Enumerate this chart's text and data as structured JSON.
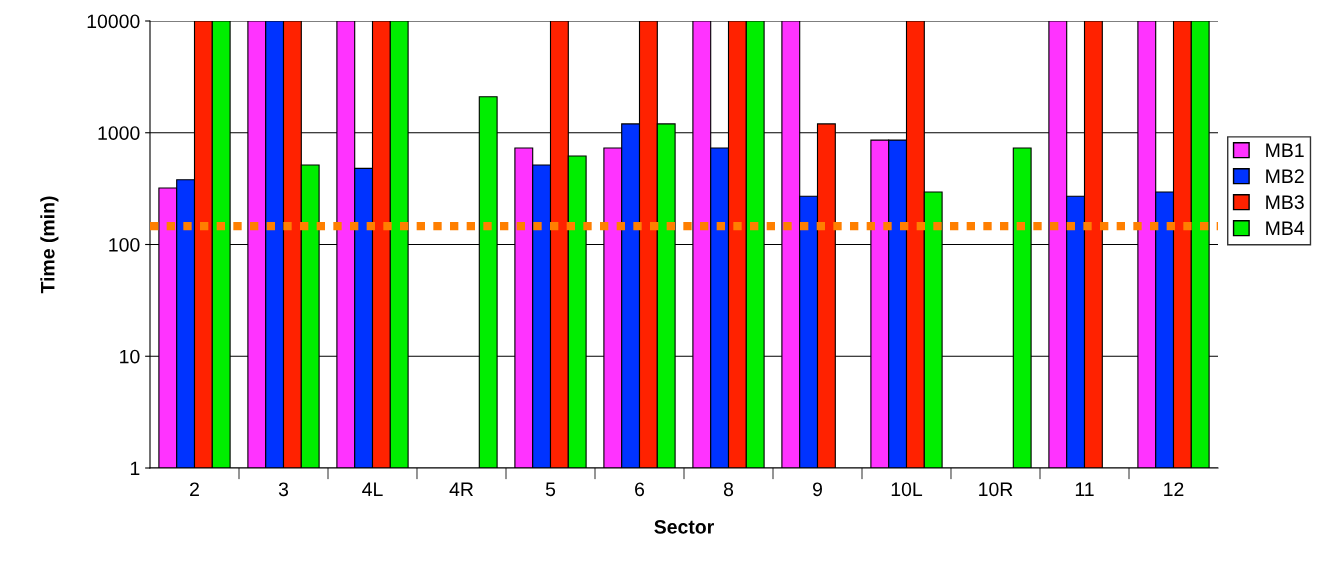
{
  "chart_data": {
    "type": "bar",
    "xlabel": "Sector",
    "ylabel": "Time (min)",
    "log": true,
    "grid": "y",
    "legend": "right",
    "categories": [
      "2",
      "3",
      "4L",
      "4R",
      "5",
      "6",
      "8",
      "9",
      "10L",
      "10R",
      "11",
      "12"
    ],
    "ylim": [
      1,
      10000
    ],
    "yticks": [
      1,
      10,
      100,
      1000,
      10000
    ],
    "series": [
      {
        "name": "MB1",
        "color": "#ff33ff",
        "values": [
          320,
          10000,
          10000,
          null,
          730,
          730,
          10000,
          10000,
          860,
          null,
          10000,
          10000
        ]
      },
      {
        "name": "MB2",
        "color": "#0033ff",
        "values": [
          380,
          10000,
          480,
          null,
          515,
          1200,
          730,
          270,
          860,
          null,
          270,
          295
        ]
      },
      {
        "name": "MB3",
        "color": "#ff2200",
        "values": [
          10000,
          10000,
          10000,
          null,
          10000,
          10000,
          10000,
          1200,
          10000,
          null,
          10000,
          10000
        ]
      },
      {
        "name": "MB4",
        "color": "#00ee00",
        "values": [
          10000,
          515,
          10000,
          2100,
          620,
          1200,
          10000,
          null,
          295,
          730,
          null,
          10000
        ]
      }
    ],
    "ref_lines": [
      {
        "axis": "y",
        "value": 146,
        "color": "#ff7f00",
        "line_style": "dotted"
      }
    ]
  }
}
